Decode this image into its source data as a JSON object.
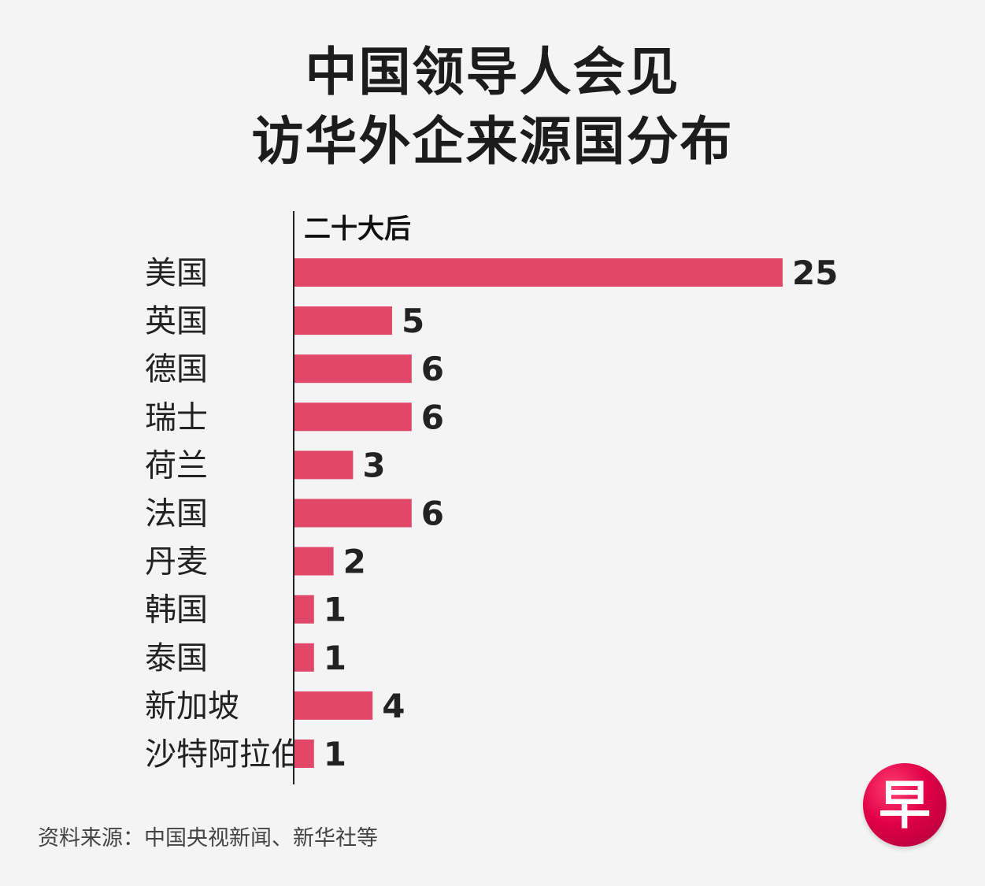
{
  "title": {
    "line1": "中国领导人会见",
    "line2": "访华外企来源国分布"
  },
  "source": "资料来源：中国央视新闻、新华社等",
  "logo": {
    "text": "早",
    "color": "#e0004d"
  },
  "chart_data": {
    "type": "bar",
    "orientation": "horizontal",
    "series_label": "二十大后",
    "categories": [
      "美国",
      "英国",
      "德国",
      "瑞士",
      "荷兰",
      "法国",
      "丹麦",
      "韩国",
      "泰国",
      "新加坡",
      "沙特阿拉伯"
    ],
    "values": [
      25,
      5,
      6,
      6,
      3,
      6,
      2,
      1,
      1,
      4,
      1
    ],
    "value_labels": [
      "25",
      "5",
      "6",
      "6",
      "3",
      "6",
      "2",
      "1",
      "1",
      "4",
      "1"
    ],
    "xlim": [
      0,
      25
    ],
    "bar_color": "#e04768",
    "grid": false,
    "legend": "none"
  }
}
